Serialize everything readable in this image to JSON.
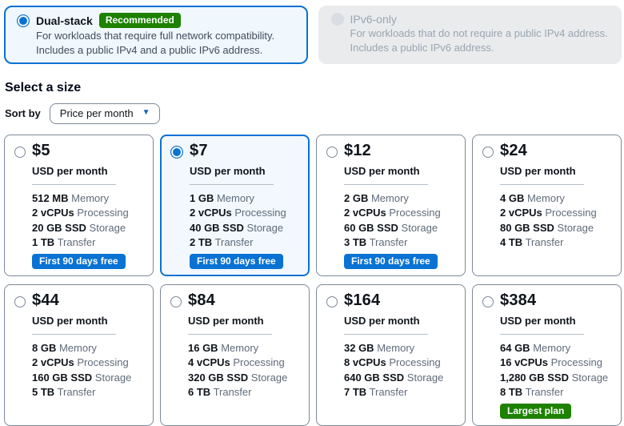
{
  "network_options": [
    {
      "label": "Dual-stack",
      "badge": "Recommended",
      "description": "For workloads that require full network compatibility. Includes a public IPv4 and a public IPv6 address.",
      "selected": true,
      "disabled": false
    },
    {
      "label": "IPv6-only",
      "badge": "",
      "description": "For workloads that do not require a public IPv4 address. Includes a public IPv6 address.",
      "selected": false,
      "disabled": true
    }
  ],
  "size_section": {
    "heading": "Select a size",
    "sort_by_label": "Sort by",
    "sort_value": "Price per month"
  },
  "icons": {
    "dropdown_caret": "▼"
  },
  "plans": [
    {
      "price": "$5",
      "period": "USD per month",
      "selected": false,
      "specs": [
        {
          "value": "512 MB",
          "label": "Memory"
        },
        {
          "value": "2 vCPUs",
          "label": "Processing"
        },
        {
          "value": "20 GB SSD",
          "label": "Storage"
        },
        {
          "value": "1 TB",
          "label": "Transfer"
        }
      ],
      "badge": "First 90 days free",
      "badge_variant": "blue"
    },
    {
      "price": "$7",
      "period": "USD per month",
      "selected": true,
      "specs": [
        {
          "value": "1 GB",
          "label": "Memory"
        },
        {
          "value": "2 vCPUs",
          "label": "Processing"
        },
        {
          "value": "40 GB SSD",
          "label": "Storage"
        },
        {
          "value": "2 TB",
          "label": "Transfer"
        }
      ],
      "badge": "First 90 days free",
      "badge_variant": "blue"
    },
    {
      "price": "$12",
      "period": "USD per month",
      "selected": false,
      "specs": [
        {
          "value": "2 GB",
          "label": "Memory"
        },
        {
          "value": "2 vCPUs",
          "label": "Processing"
        },
        {
          "value": "60 GB SSD",
          "label": "Storage"
        },
        {
          "value": "3 TB",
          "label": "Transfer"
        }
      ],
      "badge": "First 90 days free",
      "badge_variant": "blue"
    },
    {
      "price": "$24",
      "period": "USD per month",
      "selected": false,
      "specs": [
        {
          "value": "4 GB",
          "label": "Memory"
        },
        {
          "value": "2 vCPUs",
          "label": "Processing"
        },
        {
          "value": "80 GB SSD",
          "label": "Storage"
        },
        {
          "value": "4 TB",
          "label": "Transfer"
        }
      ],
      "badge": "",
      "badge_variant": ""
    },
    {
      "price": "$44",
      "period": "USD per month",
      "selected": false,
      "specs": [
        {
          "value": "8 GB",
          "label": "Memory"
        },
        {
          "value": "2 vCPUs",
          "label": "Processing"
        },
        {
          "value": "160 GB SSD",
          "label": "Storage"
        },
        {
          "value": "5 TB",
          "label": "Transfer"
        }
      ],
      "badge": "",
      "badge_variant": ""
    },
    {
      "price": "$84",
      "period": "USD per month",
      "selected": false,
      "specs": [
        {
          "value": "16 GB",
          "label": "Memory"
        },
        {
          "value": "4 vCPUs",
          "label": "Processing"
        },
        {
          "value": "320 GB SSD",
          "label": "Storage"
        },
        {
          "value": "6 TB",
          "label": "Transfer"
        }
      ],
      "badge": "",
      "badge_variant": ""
    },
    {
      "price": "$164",
      "period": "USD per month",
      "selected": false,
      "specs": [
        {
          "value": "32 GB",
          "label": "Memory"
        },
        {
          "value": "8 vCPUs",
          "label": "Processing"
        },
        {
          "value": "640 GB SSD",
          "label": "Storage"
        },
        {
          "value": "7 TB",
          "label": "Transfer"
        }
      ],
      "badge": "",
      "badge_variant": ""
    },
    {
      "price": "$384",
      "period": "USD per month",
      "selected": false,
      "specs": [
        {
          "value": "64 GB",
          "label": "Memory"
        },
        {
          "value": "16 vCPUs",
          "label": "Processing"
        },
        {
          "value": "1,280 GB SSD",
          "label": "Storage"
        },
        {
          "value": "8 TB",
          "label": "Transfer"
        }
      ],
      "badge": "Largest plan",
      "badge_variant": "green"
    }
  ],
  "colors": {
    "accent_blue": "#0972d3",
    "selected_card_bg": "#f2f8fd",
    "badge_blue": "#0972d3",
    "badge_green": "#1d8102",
    "card_border_gray": "#7d8998",
    "disabled_bg": "#e9ebed",
    "spec_label_gray": "#5f6b7a"
  }
}
